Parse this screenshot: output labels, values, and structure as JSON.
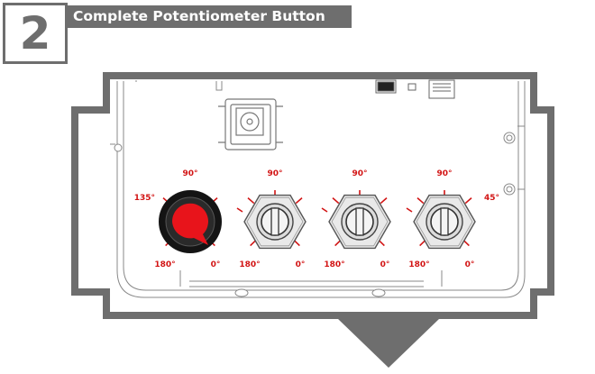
{
  "step": {
    "number": "2",
    "title": "Complete Potentiometer Button"
  },
  "colors": {
    "frame": "#6e6e6e",
    "label_red": "#d21414",
    "knob_red": "#e8141b",
    "knob_black": "#141414",
    "line_art": "#888888"
  },
  "potentiometers": [
    {
      "name": "completed-knob",
      "state": "knob-installed",
      "labels": {
        "top": "90°",
        "top_left": "135°",
        "bottom_left": "180°",
        "bottom_right": "0°"
      }
    },
    {
      "name": "pot-2",
      "state": "bare-shaft",
      "labels": {
        "top": "90°",
        "bottom_left": "180°",
        "bottom_right": "0°"
      }
    },
    {
      "name": "pot-3",
      "state": "bare-shaft",
      "labels": {
        "top": "90°",
        "bottom_left": "180°",
        "bottom_right": "0°"
      }
    },
    {
      "name": "pot-4",
      "state": "bare-shaft",
      "labels": {
        "top": "90°",
        "top_right": "45°",
        "bottom_left": "180°",
        "bottom_right": "0°"
      }
    }
  ]
}
